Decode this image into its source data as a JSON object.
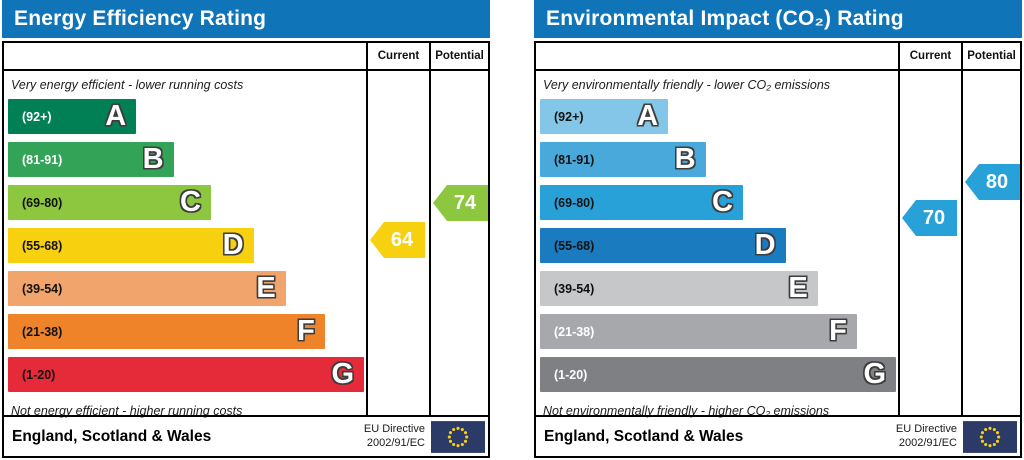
{
  "chart_data": [
    {
      "type": "bar",
      "title": "Energy Efficiency Rating",
      "top_caption": "Very energy efficient - lower running costs",
      "bottom_caption": "Not energy efficient - higher running costs",
      "col_current": "Current",
      "col_potential": "Potential",
      "bands": [
        {
          "letter": "A",
          "range_label": "(92+)",
          "min": 92,
          "max": 100,
          "color": "#008054",
          "text_color": "#ffffff",
          "width_pct": 36
        },
        {
          "letter": "B",
          "range_label": "(81-91)",
          "min": 81,
          "max": 91,
          "color": "#33a357",
          "text_color": "#ffffff",
          "width_pct": 46.5
        },
        {
          "letter": "C",
          "range_label": "(69-80)",
          "min": 69,
          "max": 80,
          "color": "#8dc63f",
          "text_color": "#111111",
          "width_pct": 57
        },
        {
          "letter": "D",
          "range_label": "(55-68)",
          "min": 55,
          "max": 68,
          "color": "#f7d010",
          "text_color": "#111111",
          "width_pct": 69
        },
        {
          "letter": "E",
          "range_label": "(39-54)",
          "min": 39,
          "max": 54,
          "color": "#f1a46b",
          "text_color": "#111111",
          "width_pct": 78
        },
        {
          "letter": "F",
          "range_label": "(21-38)",
          "min": 21,
          "max": 38,
          "color": "#ee8329",
          "text_color": "#111111",
          "width_pct": 89
        },
        {
          "letter": "G",
          "range_label": "(1-20)",
          "min": 1,
          "max": 20,
          "color": "#e52a39",
          "text_color": "#111111",
          "width_pct": 100
        }
      ],
      "current_value": 64,
      "current_band": "D",
      "current_color": "#f7d010",
      "potential_value": 74,
      "potential_band": "C",
      "potential_color": "#8dc63f",
      "footer_region": "England, Scotland & Wales",
      "eu_directive_line1": "EU Directive",
      "eu_directive_line2": "2002/91/EC",
      "flag_colors": {
        "background": "#2b3a67",
        "stars": "#f7d117"
      }
    },
    {
      "type": "bar",
      "title": "Environmental Impact (CO₂) Rating",
      "top_caption": "Very environmentally friendly - lower CO₂ emissions",
      "bottom_caption": "Not environmentally friendly - higher CO₂ emissions",
      "col_current": "Current",
      "col_potential": "Potential",
      "bands": [
        {
          "letter": "A",
          "range_label": "(92+)",
          "min": 92,
          "max": 100,
          "color": "#83c6e7",
          "text_color": "#111111",
          "width_pct": 36
        },
        {
          "letter": "B",
          "range_label": "(81-91)",
          "min": 81,
          "max": 91,
          "color": "#4aa9db",
          "text_color": "#111111",
          "width_pct": 46.5
        },
        {
          "letter": "C",
          "range_label": "(69-80)",
          "min": 69,
          "max": 80,
          "color": "#28a0d8",
          "text_color": "#111111",
          "width_pct": 57
        },
        {
          "letter": "D",
          "range_label": "(55-68)",
          "min": 55,
          "max": 68,
          "color": "#1a7bbf",
          "text_color": "#111111",
          "width_pct": 69
        },
        {
          "letter": "E",
          "range_label": "(39-54)",
          "min": 39,
          "max": 54,
          "color": "#c6c7c9",
          "text_color": "#111111",
          "width_pct": 78
        },
        {
          "letter": "F",
          "range_label": "(21-38)",
          "min": 21,
          "max": 38,
          "color": "#a7a8ac",
          "text_color": "#ffffff",
          "width_pct": 89
        },
        {
          "letter": "G",
          "range_label": "(1-20)",
          "min": 1,
          "max": 20,
          "color": "#7f8083",
          "text_color": "#ffffff",
          "width_pct": 100
        }
      ],
      "current_value": 70,
      "current_band": "C",
      "current_color": "#28a0d8",
      "potential_value": 80,
      "potential_band": "C",
      "potential_color": "#28a0d8",
      "footer_region": "England, Scotland & Wales",
      "eu_directive_line1": "EU Directive",
      "eu_directive_line2": "2002/91/EC",
      "flag_colors": {
        "background": "#2b3a67",
        "stars": "#f7d117"
      }
    }
  ]
}
